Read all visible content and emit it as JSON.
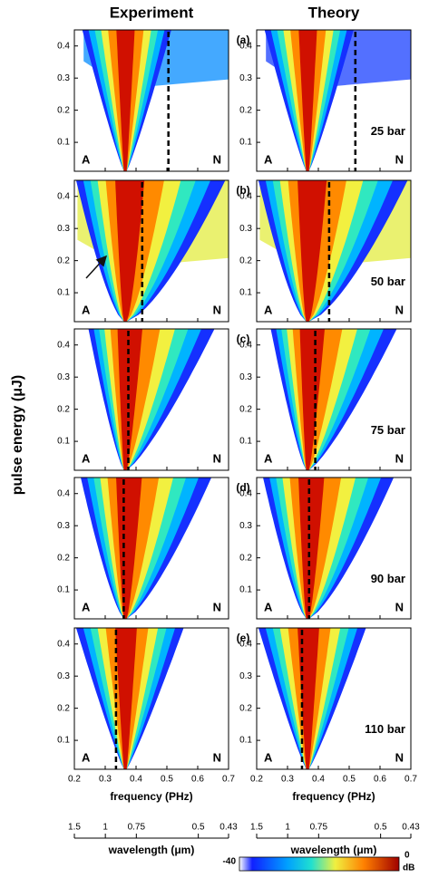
{
  "chart_data": {
    "type": "heatmap",
    "columns": [
      "Experiment",
      "Theory"
    ],
    "ylabel": "pulse energy (μJ)",
    "xlabel": "frequency (PHz)",
    "x2label": "wavelength (μm)",
    "corner_labels": [
      "A",
      "N"
    ],
    "rows": [
      {
        "label": "(a)",
        "annotation": "25 bar",
        "cutoff": [
          0.505,
          0.52
        ]
      },
      {
        "label": "(b)",
        "annotation": "50 bar",
        "cutoff": [
          0.42,
          0.435
        ]
      },
      {
        "label": "(c)",
        "annotation": "75 bar",
        "cutoff": [
          0.375,
          0.39
        ]
      },
      {
        "label": "(d)",
        "annotation": "90 bar",
        "cutoff": [
          0.36,
          0.37
        ]
      },
      {
        "label": "(e)",
        "annotation": "110 bar",
        "cutoff": [
          0.335,
          0.347
        ]
      }
    ],
    "xlim": [
      0.2,
      0.7
    ],
    "xticks": [
      0.2,
      0.3,
      0.4,
      0.5,
      0.6,
      0.7
    ],
    "x2lim": [
      1.5,
      0.43
    ],
    "x2scale": "reciprocal",
    "x2ticks": [
      1.5,
      1,
      0.75,
      0.5,
      0.43
    ],
    "ylim": [
      0.01,
      0.45
    ],
    "yticks": [
      0.1,
      0.2,
      0.3,
      0.4
    ],
    "colorbar": {
      "lim": [
        -40,
        0
      ],
      "unit": "dB",
      "colormap": "jet"
    }
  }
}
